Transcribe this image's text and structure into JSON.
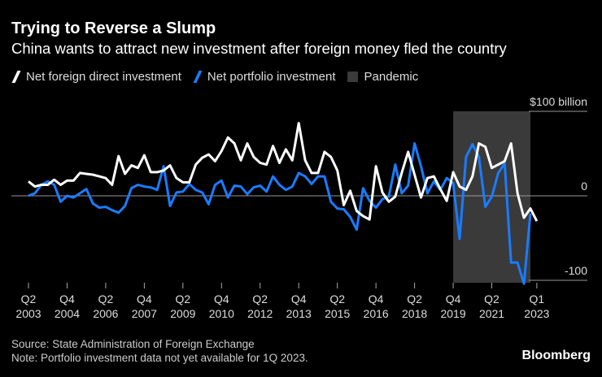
{
  "chart_data": {
    "type": "line",
    "title": "Trying to Reverse a Slump",
    "subtitle": "China wants to attract new investment after foreign money fled the country",
    "legend": [
      {
        "name": "Net foreign direct investment",
        "color": "#ffffff"
      },
      {
        "name": "Net portfolio investment",
        "color": "#1a7cff"
      },
      {
        "name": "Pandemic",
        "color": "#3a3a3a"
      }
    ],
    "x_start": "Q2 2003",
    "x_end": "Q1 2023",
    "x_tick_labels": [
      {
        "q": "Q2",
        "y": "2003",
        "i": 0
      },
      {
        "q": "Q4",
        "y": "2004",
        "i": 6
      },
      {
        "q": "Q2",
        "y": "2006",
        "i": 12
      },
      {
        "q": "Q4",
        "y": "2007",
        "i": 18
      },
      {
        "q": "Q2",
        "y": "2009",
        "i": 24
      },
      {
        "q": "Q4",
        "y": "2010",
        "i": 30
      },
      {
        "q": "Q2",
        "y": "2012",
        "i": 36
      },
      {
        "q": "Q4",
        "y": "2013",
        "i": 42
      },
      {
        "q": "Q2",
        "y": "2015",
        "i": 48
      },
      {
        "q": "Q4",
        "y": "2016",
        "i": 54
      },
      {
        "q": "Q2",
        "y": "2018",
        "i": 60
      },
      {
        "q": "Q4",
        "y": "2019",
        "i": 66
      },
      {
        "q": "Q2",
        "y": "2021",
        "i": 72
      },
      {
        "q": "Q1",
        "y": "2023",
        "i": 79
      }
    ],
    "y_ticks": [
      {
        "value": 100,
        "label": "$100 billion"
      },
      {
        "value": 0,
        "label": "0"
      },
      {
        "value": -100,
        "label": "-100"
      }
    ],
    "ylim": [
      -105,
      105
    ],
    "pandemic_range": [
      66,
      78
    ],
    "series": [
      {
        "name": "Net foreign direct investment",
        "values": [
          17,
          11,
          13,
          13,
          19,
          13,
          18,
          18,
          27,
          26,
          25,
          23,
          21,
          13,
          47,
          26,
          36,
          33,
          48,
          28,
          28,
          30,
          36,
          21,
          16,
          16,
          37,
          45,
          49,
          41,
          53,
          69,
          62,
          42,
          62,
          46,
          39,
          37,
          59,
          39,
          55,
          42,
          86,
          42,
          27,
          27,
          52,
          46,
          30,
          -11,
          6,
          -18,
          -24,
          -28,
          35,
          4,
          -7,
          -1,
          27,
          52,
          25,
          -2,
          21,
          23,
          8,
          -6,
          28,
          11,
          7,
          23,
          62,
          58,
          33,
          37,
          41,
          62,
          3,
          -26,
          -15,
          -30
        ]
      },
      {
        "name": "Net portfolio investment",
        "values": [
          0,
          3,
          13,
          17,
          13,
          -7,
          0,
          -2,
          3,
          8,
          -9,
          -14,
          -13,
          -17,
          -20,
          -12,
          9,
          13,
          11,
          10,
          7,
          35,
          -12,
          4,
          5,
          14,
          7,
          4,
          -10,
          13,
          18,
          -2,
          12,
          11,
          2,
          10,
          12,
          5,
          23,
          13,
          7,
          11,
          27,
          23,
          14,
          23,
          23,
          -7,
          -15,
          -16,
          -25,
          -40,
          9,
          -6,
          -14,
          -4,
          -1,
          37,
          3,
          12,
          62,
          35,
          3,
          17,
          7,
          21,
          15,
          -51,
          46,
          61,
          46,
          -13,
          -1,
          27,
          38,
          -79,
          -79,
          -104,
          -21
        ]
      }
    ]
  },
  "source": "Source: State Administration of Foreign Exchange",
  "note": "Note: Portfolio investment data not yet available for 1Q 2023.",
  "brand": "Bloomberg"
}
